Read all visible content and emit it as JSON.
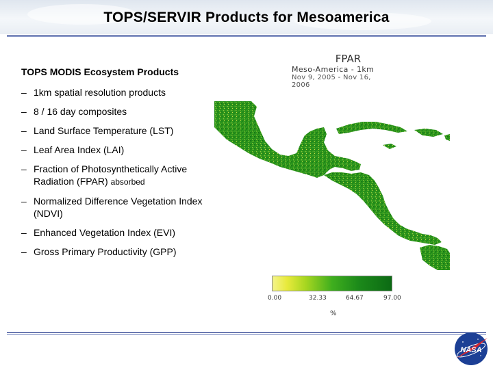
{
  "header": {
    "title": "TOPS/SERVIR Products for Mesoamerica"
  },
  "content": {
    "heading": "TOPS MODIS Ecosystem Products",
    "bullet_marker": "–",
    "items": [
      {
        "text": "1km spatial resolution products"
      },
      {
        "text": "8 / 16 day composites"
      },
      {
        "text": "Land Surface Temperature (LST)"
      },
      {
        "text": "Leaf Area Index (LAI)"
      },
      {
        "text": "Fraction of Photosynthetically Active Radiation (FPAR)",
        "suffix": "absorbed"
      },
      {
        "text": "Normalized Difference Vegetation Index (NDVI)"
      },
      {
        "text": "Enhanced Vegetation Index (EVI)"
      },
      {
        "text": "Gross Primary Productivity (GPP)"
      }
    ]
  },
  "map": {
    "title": "FPAR",
    "region": "Meso-America - 1km",
    "dates": "Nov 9, 2005 - Nov 16, 2006",
    "colorbar_ticks": [
      "0.00",
      "32.33",
      "64.67",
      "97.00"
    ],
    "unit": "%",
    "colors": {
      "land_low": "#f4f48a",
      "land_high": "#0c6a14",
      "ocean": "#ffffff"
    }
  },
  "footer": {
    "logo_text": "NASA",
    "logo_colors": {
      "ball": "#1c3f95",
      "chevron": "#d22630"
    }
  }
}
